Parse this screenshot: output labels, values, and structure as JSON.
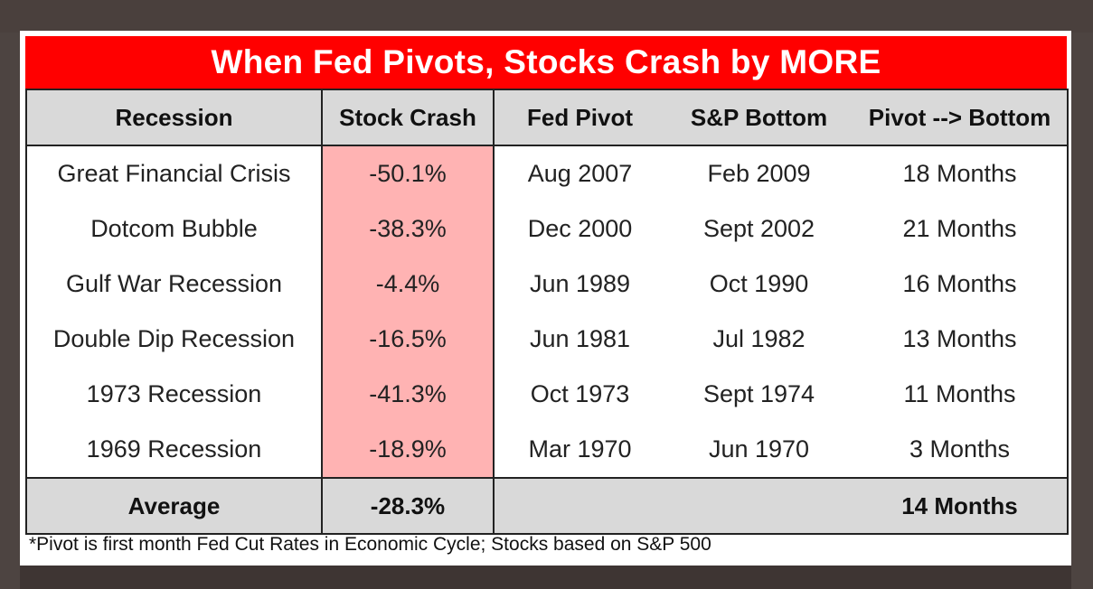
{
  "title": "When Fed Pivots, Stocks Crash by MORE",
  "columns": [
    "Recession",
    "Stock Crash",
    "Fed Pivot",
    "S&P Bottom",
    "Pivot --> Bottom"
  ],
  "rows": [
    {
      "recession": "Great Financial Crisis",
      "crash": "-50.1%",
      "pivot": "Aug 2007",
      "bottom": "Feb 2009",
      "duration": "18 Months"
    },
    {
      "recession": "Dotcom Bubble",
      "crash": "-38.3%",
      "pivot": "Dec 2000",
      "bottom": "Sept 2002",
      "duration": "21 Months"
    },
    {
      "recession": "Gulf War Recession",
      "crash": "-4.4%",
      "pivot": "Jun 1989",
      "bottom": "Oct 1990",
      "duration": "16 Months"
    },
    {
      "recession": "Double Dip Recession",
      "crash": "-16.5%",
      "pivot": "Jun 1981",
      "bottom": "Jul 1982",
      "duration": "13 Months"
    },
    {
      "recession": "1973 Recession",
      "crash": "-41.3%",
      "pivot": "Oct 1973",
      "bottom": "Sept 1974",
      "duration": "11 Months"
    },
    {
      "recession": "1969 Recession",
      "crash": "-18.9%",
      "pivot": "Mar 1970",
      "bottom": "Jun 1970",
      "duration": "3 Months"
    }
  ],
  "average": {
    "label": "Average",
    "crash": "-28.3%",
    "duration": "14 Months"
  },
  "footnote": "*Pivot is first month Fed Cut Rates in Economic Cycle; Stocks based on S&P 500",
  "colors": {
    "title_bg": "#ff0000",
    "header_bg": "#d9d9d9",
    "crash_bg": "#ffb3b3"
  }
}
